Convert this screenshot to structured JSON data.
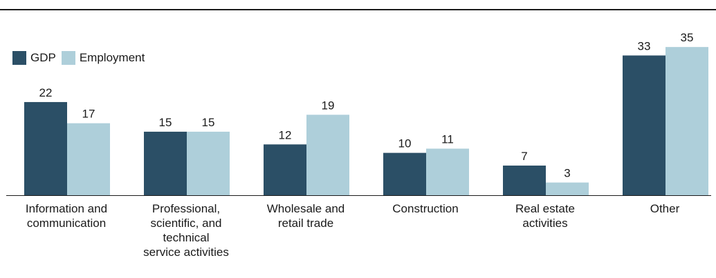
{
  "chart_data": {
    "type": "bar",
    "categories": [
      "Information and\ncommunication",
      "Professional,\nscientific, and\ntechnical\nservice activities",
      "Wholesale and\nretail trade",
      "Construction",
      "Real estate\nactivities",
      "Other"
    ],
    "series": [
      {
        "name": "GDP",
        "values": [
          22,
          15,
          12,
          10,
          7,
          33
        ],
        "color": "#2b4f66"
      },
      {
        "name": "Employment",
        "values": [
          17,
          15,
          19,
          11,
          3,
          35
        ],
        "color": "#aecfda"
      }
    ],
    "ylim": [
      0,
      36
    ],
    "grid": false,
    "legend_position": "top-left",
    "data_labels": true
  }
}
